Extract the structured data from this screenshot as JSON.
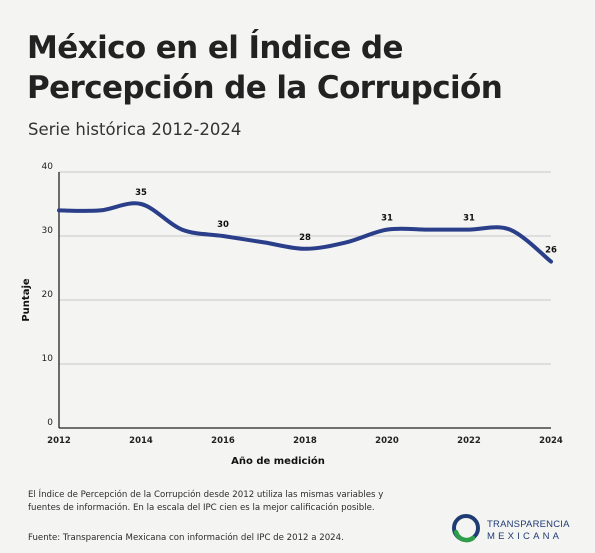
{
  "title_line1": "México en el Índice de",
  "title_line2": "Percepción de la Corrupción",
  "subtitle": "Serie histórica 2012-2024",
  "note": "El Índice de Percepción de la Corrupción desde 2012 utiliza las mismas variables y fuentes de información. En la escala del IPC cien es la mejor calificación posible.",
  "source": "Fuente: Transparencia Mexicana con información del IPC de 2012 a 2024.",
  "logo": {
    "line1": "TRANSPARENCIA",
    "line2": "MEXICANA",
    "colors": [
      "#1f3c74",
      "#2e9e4a"
    ]
  },
  "chart_data": {
    "type": "line",
    "xlabel": "Año de medición",
    "ylabel": "Puntaje",
    "xlim": [
      2012,
      2024
    ],
    "ylim": [
      0,
      40
    ],
    "x_ticks": [
      2012,
      2014,
      2016,
      2018,
      2020,
      2022,
      2024
    ],
    "y_ticks": [
      0,
      10,
      20,
      30,
      40
    ],
    "grid": "horizontal",
    "line_color": "#2a3e8a",
    "series": [
      {
        "x": [
          2012,
          2013,
          2014,
          2015,
          2016,
          2017,
          2018,
          2019,
          2020,
          2021,
          2022,
          2023,
          2024
        ],
        "values": [
          34,
          34,
          35,
          31,
          30,
          29,
          28,
          29,
          31,
          31,
          31,
          31,
          26
        ]
      }
    ],
    "data_labels": [
      {
        "x": 2014,
        "y": 35,
        "text": "35"
      },
      {
        "x": 2016,
        "y": 30,
        "text": "30"
      },
      {
        "x": 2018,
        "y": 28,
        "text": "28"
      },
      {
        "x": 2020,
        "y": 31,
        "text": "31"
      },
      {
        "x": 2022,
        "y": 31,
        "text": "31"
      },
      {
        "x": 2024,
        "y": 26,
        "text": "26"
      }
    ]
  }
}
